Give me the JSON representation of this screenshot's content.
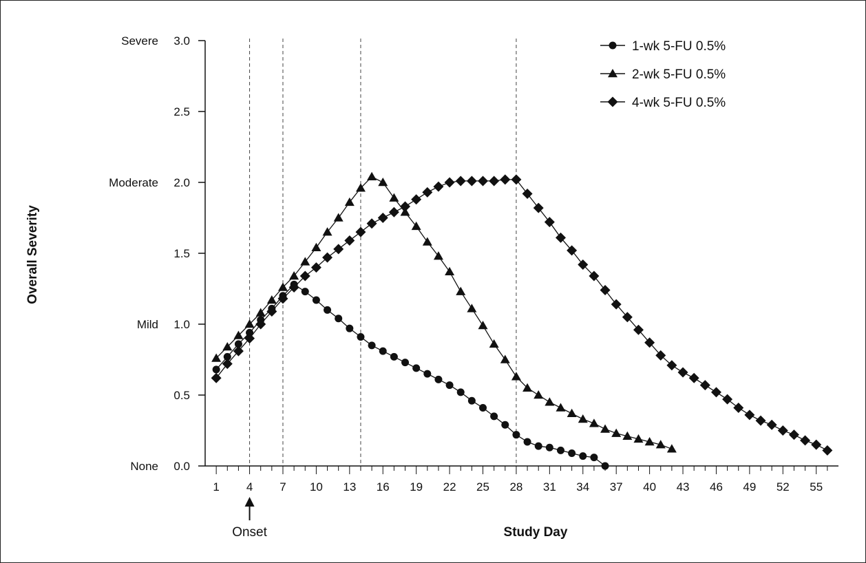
{
  "chart_data": {
    "type": "line",
    "xlabel": "Study Day",
    "ylabel": "Overall Severity",
    "xlim": [
      0,
      57
    ],
    "ylim": [
      0,
      3.0
    ],
    "x_ticks": [
      1,
      4,
      7,
      10,
      13,
      16,
      19,
      22,
      25,
      28,
      31,
      34,
      37,
      40,
      43,
      46,
      49,
      52,
      55
    ],
    "y_ticks": [
      {
        "value": 3.0,
        "number": "3.0",
        "category": "Severe"
      },
      {
        "value": 2.5,
        "number": "2.5",
        "category": ""
      },
      {
        "value": 2.0,
        "number": "2.0",
        "category": "Moderate"
      },
      {
        "value": 1.5,
        "number": "1.5",
        "category": ""
      },
      {
        "value": 1.0,
        "number": "1.0",
        "category": "Mild"
      },
      {
        "value": 0.5,
        "number": "0.5",
        "category": ""
      },
      {
        "value": 0.0,
        "number": "0.0",
        "category": "None"
      }
    ],
    "reference_lines_x": [
      4,
      7,
      14,
      28
    ],
    "annotations": [
      {
        "text": "Onset",
        "x": 4
      }
    ],
    "legend_position": "top-right",
    "grid": false,
    "series": [
      {
        "name": "1-wk 5-FU 0.5%",
        "marker": "circle",
        "x": [
          1,
          2,
          3,
          4,
          5,
          6,
          7,
          8,
          9,
          10,
          11,
          12,
          13,
          14,
          15,
          16,
          17,
          18,
          19,
          20,
          21,
          22,
          23,
          24,
          25,
          26,
          27,
          28,
          29,
          30,
          31,
          32,
          33,
          34,
          35,
          36
        ],
        "values": [
          0.68,
          0.77,
          0.86,
          0.94,
          1.03,
          1.11,
          1.2,
          1.28,
          1.23,
          1.17,
          1.1,
          1.04,
          0.97,
          0.91,
          0.85,
          0.81,
          0.77,
          0.73,
          0.69,
          0.65,
          0.61,
          0.57,
          0.52,
          0.46,
          0.41,
          0.35,
          0.29,
          0.22,
          0.17,
          0.14,
          0.13,
          0.11,
          0.09,
          0.07,
          0.06,
          0.0
        ]
      },
      {
        "name": "2-wk 5-FU 0.5%",
        "marker": "triangle",
        "x": [
          1,
          2,
          3,
          4,
          5,
          6,
          7,
          8,
          9,
          10,
          11,
          12,
          13,
          14,
          15,
          16,
          17,
          18,
          19,
          20,
          21,
          22,
          23,
          24,
          25,
          26,
          27,
          28,
          29,
          30,
          31,
          32,
          33,
          34,
          35,
          36,
          37,
          38,
          39,
          40,
          41,
          42
        ],
        "values": [
          0.76,
          0.84,
          0.92,
          1.0,
          1.08,
          1.17,
          1.26,
          1.34,
          1.44,
          1.54,
          1.65,
          1.75,
          1.86,
          1.96,
          2.04,
          2.0,
          1.89,
          1.79,
          1.69,
          1.58,
          1.48,
          1.37,
          1.23,
          1.11,
          0.99,
          0.86,
          0.75,
          0.63,
          0.55,
          0.5,
          0.45,
          0.41,
          0.37,
          0.33,
          0.3,
          0.26,
          0.23,
          0.21,
          0.19,
          0.17,
          0.15,
          0.12
        ]
      },
      {
        "name": "4-wk 5-FU 0.5%",
        "marker": "diamond",
        "x": [
          1,
          2,
          3,
          4,
          5,
          6,
          7,
          8,
          9,
          10,
          11,
          12,
          13,
          14,
          15,
          16,
          17,
          18,
          19,
          20,
          21,
          22,
          23,
          24,
          25,
          26,
          27,
          28,
          29,
          30,
          31,
          32,
          33,
          34,
          35,
          36,
          37,
          38,
          39,
          40,
          41,
          42,
          43,
          44,
          45,
          46,
          47,
          48,
          49,
          50,
          51,
          52,
          53,
          54,
          55,
          56
        ],
        "values": [
          0.62,
          0.72,
          0.81,
          0.9,
          1.0,
          1.09,
          1.18,
          1.26,
          1.34,
          1.4,
          1.47,
          1.53,
          1.59,
          1.65,
          1.71,
          1.75,
          1.79,
          1.83,
          1.88,
          1.93,
          1.97,
          2.0,
          2.01,
          2.01,
          2.01,
          2.01,
          2.02,
          2.02,
          1.92,
          1.82,
          1.72,
          1.61,
          1.52,
          1.42,
          1.34,
          1.24,
          1.14,
          1.05,
          0.96,
          0.87,
          0.78,
          0.71,
          0.66,
          0.62,
          0.57,
          0.52,
          0.47,
          0.41,
          0.36,
          0.32,
          0.29,
          0.25,
          0.22,
          0.18,
          0.15,
          0.11
        ]
      }
    ]
  }
}
